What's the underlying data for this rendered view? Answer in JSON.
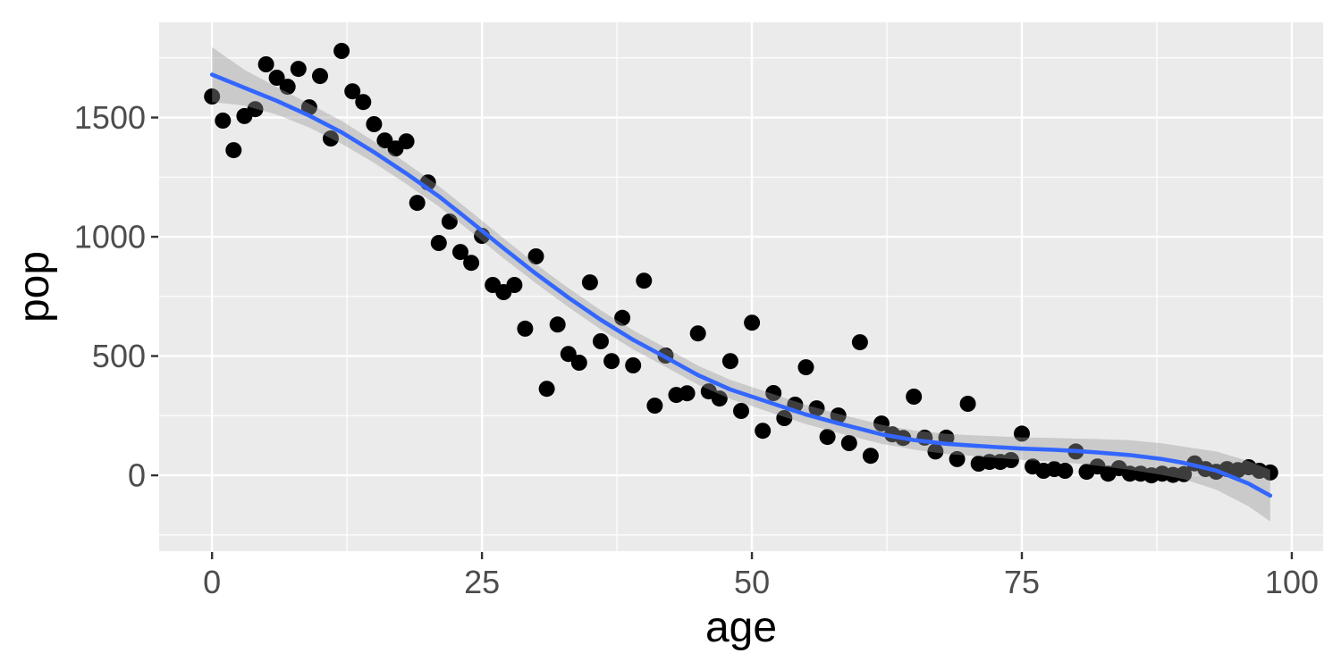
{
  "chart_data": {
    "type": "scatter",
    "title": "",
    "xlabel": "age",
    "ylabel": "pop",
    "legend": "none",
    "grid": true,
    "panel_theme": "ggplot2-grey",
    "xlim": [
      -4.9,
      102.9
    ],
    "ylim": [
      -318,
      1899
    ],
    "x_ticks": [
      0,
      25,
      50,
      75,
      100
    ],
    "y_ticks": [
      0,
      500,
      1000,
      1500
    ],
    "x_minor_ticks": [
      12.5,
      37.5,
      62.5,
      87.5
    ],
    "y_minor_ticks": [
      -250,
      250,
      750,
      1250,
      1750
    ],
    "points": {
      "x": [
        0,
        1,
        2,
        3,
        4,
        5,
        6,
        7,
        8,
        9,
        10,
        11,
        12,
        13,
        14,
        15,
        16,
        17,
        18,
        19,
        20,
        21,
        22,
        23,
        24,
        25,
        26,
        27,
        28,
        29,
        30,
        31,
        32,
        33,
        34,
        35,
        36,
        37,
        38,
        39,
        40,
        41,
        42,
        43,
        44,
        45,
        46,
        47,
        48,
        49,
        50,
        51,
        52,
        53,
        54,
        55,
        56,
        57,
        58,
        59,
        60,
        61,
        62,
        63,
        64,
        65,
        66,
        67,
        68,
        69,
        70,
        71,
        72,
        73,
        74,
        75,
        76,
        77,
        78,
        79,
        80,
        81,
        82,
        83,
        84,
        85,
        86,
        87,
        88,
        89,
        90,
        91,
        92,
        93,
        94,
        95,
        96,
        97,
        98
      ],
      "y": [
        1588,
        1487,
        1363,
        1506,
        1535,
        1723,
        1667,
        1629,
        1704,
        1543,
        1674,
        1412,
        1779,
        1610,
        1565,
        1472,
        1404,
        1370,
        1400,
        1142,
        1228,
        974,
        1064,
        936,
        891,
        1004,
        798,
        768,
        798,
        615,
        918,
        363,
        632,
        509,
        472,
        809,
        562,
        479,
        660,
        461,
        816,
        292,
        502,
        337,
        344,
        595,
        352,
        322,
        479,
        270,
        640,
        187,
        345,
        240,
        296,
        453,
        281,
        161,
        251,
        135,
        558,
        82,
        217,
        172,
        157,
        330,
        158,
        100,
        158,
        68,
        300,
        49,
        56,
        56,
        64,
        175,
        37,
        19,
        26,
        19,
        100,
        15,
        37,
        7,
        30,
        7,
        7,
        0,
        7,
        2,
        5,
        50,
        26,
        15,
        26,
        22,
        34,
        19,
        12
      ]
    },
    "smooth": {
      "method": "loess",
      "x": [
        0,
        3,
        6,
        9,
        12,
        15,
        18,
        21,
        24,
        27,
        30,
        33,
        36,
        39,
        42,
        45,
        48,
        50,
        52,
        55,
        58,
        60,
        62,
        65,
        68,
        70,
        72,
        75,
        78,
        80,
        82,
        85,
        88,
        90,
        93,
        96,
        98
      ],
      "fit": [
        1680,
        1625,
        1570,
        1508,
        1438,
        1355,
        1265,
        1170,
        1062,
        952,
        845,
        745,
        652,
        568,
        495,
        420,
        360,
        330,
        300,
        255,
        218,
        195,
        172,
        148,
        132,
        126,
        120,
        112,
        107,
        102,
        96,
        85,
        68,
        52,
        20,
        -35,
        -85
      ],
      "ci_upper": [
        1795,
        1700,
        1628,
        1558,
        1486,
        1400,
        1309,
        1213,
        1104,
        994,
        885,
        785,
        692,
        608,
        535,
        460,
        400,
        370,
        340,
        295,
        258,
        235,
        212,
        188,
        174,
        169,
        165,
        159,
        157,
        154,
        152,
        147,
        134,
        120,
        100,
        60,
        23
      ],
      "ci_lower": [
        1565,
        1550,
        1512,
        1458,
        1390,
        1310,
        1221,
        1127,
        1020,
        910,
        805,
        705,
        612,
        528,
        455,
        380,
        320,
        290,
        260,
        215,
        178,
        155,
        132,
        108,
        90,
        83,
        75,
        65,
        57,
        50,
        40,
        23,
        2,
        -16,
        -60,
        -130,
        -193
      ]
    },
    "colors": {
      "figure_bg": "#FFFFFF",
      "panel_bg": "#EBEBEB",
      "grid": "#FFFFFF",
      "point": "#000000",
      "smooth_line": "#3366FF",
      "ribbon": "#999999",
      "ribbon_opacity": 0.4,
      "tick_mark": "#333333",
      "tick_label": "#4D4D4D",
      "axis_title": "#000000"
    }
  }
}
